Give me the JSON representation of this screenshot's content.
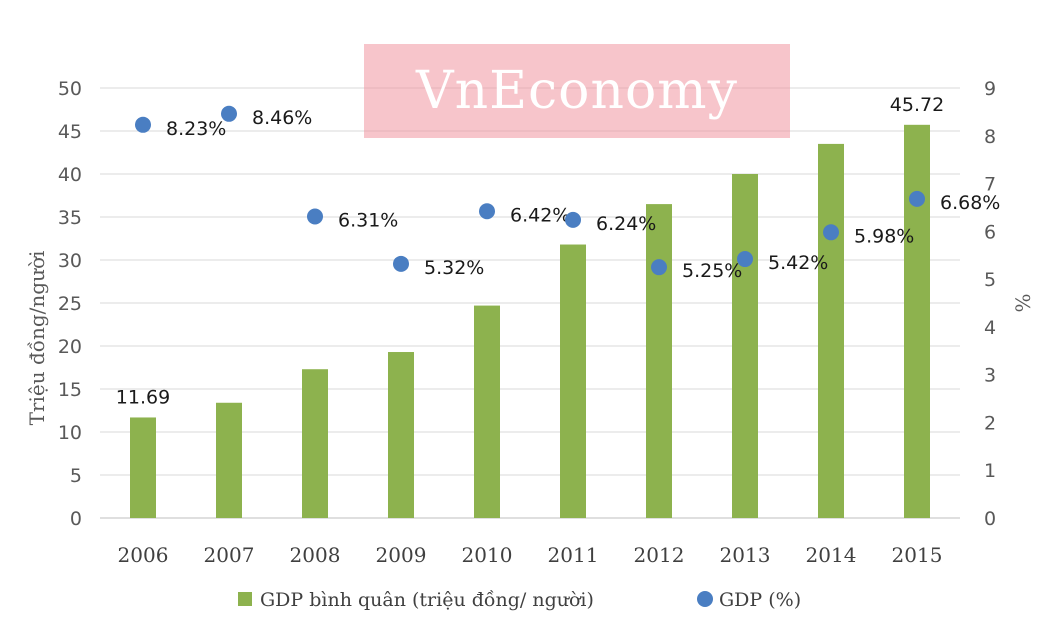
{
  "watermark": "VnEconomy",
  "colors": {
    "bar": "#8db24e",
    "dot": "#4a7ec2",
    "grid": "#d9d9d9",
    "axis": "#bfbfbf"
  },
  "chart_data": {
    "type": "bar",
    "categories": [
      "2006",
      "2007",
      "2008",
      "2009",
      "2010",
      "2011",
      "2012",
      "2013",
      "2014",
      "2015"
    ],
    "series": [
      {
        "name": "GDP bình quân (triệu đồng/ người)",
        "type": "bar",
        "axis": "left",
        "values": [
          11.69,
          13.4,
          17.3,
          19.3,
          24.7,
          31.8,
          36.5,
          40.0,
          43.5,
          45.72
        ],
        "labels": [
          "11.69",
          "",
          "",
          "",
          "",
          "",
          "",
          "",
          "",
          "45.72"
        ]
      },
      {
        "name": "GDP (%)",
        "type": "scatter",
        "axis": "right",
        "values": [
          8.23,
          8.46,
          6.31,
          5.32,
          6.42,
          6.24,
          5.25,
          5.42,
          5.98,
          6.68
        ],
        "labels": [
          "8.23%",
          "8.46%",
          "6.31%",
          "5.32%",
          "6.42%",
          "6.24%",
          "5.25%",
          "5.42%",
          "5.98%",
          "6.68%"
        ]
      }
    ],
    "ylabel": "Triệu đồng/người",
    "ylabel_right": "%",
    "ylim": [
      0,
      50
    ],
    "yticks": [
      "0",
      "5",
      "10",
      "15",
      "20",
      "25",
      "30",
      "35",
      "40",
      "45",
      "50"
    ],
    "ylim_right": [
      0,
      9
    ],
    "yticks_right": [
      "0",
      "1",
      "2",
      "3",
      "4",
      "5",
      "6",
      "7",
      "8",
      "9"
    ],
    "grid": true,
    "legend_position": "bottom"
  }
}
